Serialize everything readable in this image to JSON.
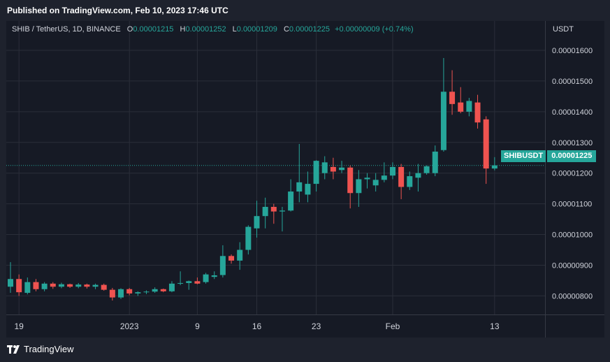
{
  "header": {
    "published": "Published on TradingView.com, Feb 10, 2023 17:46 UTC"
  },
  "legend": {
    "symbol": "SHIB / TetherUS, 1D, BINANCE",
    "o_label": "O",
    "o_value": "0.00001215",
    "h_label": "H",
    "h_value": "0.00001252",
    "l_label": "L",
    "l_value": "0.00001209",
    "c_label": "C",
    "c_value": "0.00001225",
    "change": "+0.00000009 (+0.74%)"
  },
  "axis": {
    "currency": "USDT"
  },
  "price_tag": {
    "symbol": "SHIBUSDT",
    "value": "0.00001225"
  },
  "footer": {
    "brand": "TradingView"
  },
  "colors": {
    "up": "#26a69a",
    "down": "#ef5350",
    "background": "#161a25",
    "grid": "#2a2e39",
    "text": "#d1d4dc"
  },
  "chart_data": {
    "type": "candlestick",
    "title": "SHIB / TetherUS, 1D, BINANCE",
    "xlabel": "",
    "ylabel": "USDT",
    "ylim": [
      7.6e-06,
      1.65e-05
    ],
    "xlim": [
      "2022-12-18",
      "2023-02-14"
    ],
    "y_ticks": [
      "0.00000800",
      "0.00000900",
      "0.00001000",
      "0.00001100",
      "0.00001200",
      "0.00001300",
      "0.00001400",
      "0.00001500",
      "0.00001600"
    ],
    "y_tick_values": [
      8e-06,
      9e-06,
      1e-05,
      1.1e-05,
      1.2e-05,
      1.3e-05,
      1.4e-05,
      1.5e-05,
      1.6e-05
    ],
    "x_ticks": [
      {
        "label": "19",
        "date": "2022-12-19"
      },
      {
        "label": "2023",
        "date": "2023-01-01"
      },
      {
        "label": "9",
        "date": "2023-01-09"
      },
      {
        "label": "16",
        "date": "2023-01-16"
      },
      {
        "label": "23",
        "date": "2023-01-23"
      },
      {
        "label": "Feb",
        "date": "2023-02-01"
      },
      {
        "label": "13",
        "date": "2023-02-13"
      }
    ],
    "last_price": 1.225e-05,
    "grid": true,
    "candles": [
      {
        "date": "2022-12-18",
        "o": 8.3e-06,
        "h": 9.1e-06,
        "l": 8.1e-06,
        "c": 8.55e-06
      },
      {
        "date": "2022-12-19",
        "o": 8.55e-06,
        "h": 8.7e-06,
        "l": 8e-06,
        "c": 8.12e-06
      },
      {
        "date": "2022-12-20",
        "o": 8.1e-06,
        "h": 8.6e-06,
        "l": 8.05e-06,
        "c": 8.45e-06
      },
      {
        "date": "2022-12-21",
        "o": 8.45e-06,
        "h": 8.55e-06,
        "l": 8.15e-06,
        "c": 8.22e-06
      },
      {
        "date": "2022-12-22",
        "o": 8.22e-06,
        "h": 8.45e-06,
        "l": 8.15e-06,
        "c": 8.4e-06
      },
      {
        "date": "2022-12-23",
        "o": 8.4e-06,
        "h": 8.45e-06,
        "l": 8.23e-06,
        "c": 8.3e-06
      },
      {
        "date": "2022-12-24",
        "o": 8.3e-06,
        "h": 8.43e-06,
        "l": 8.25e-06,
        "c": 8.38e-06
      },
      {
        "date": "2022-12-25",
        "o": 8.38e-06,
        "h": 8.4e-06,
        "l": 8.26e-06,
        "c": 8.3e-06
      },
      {
        "date": "2022-12-26",
        "o": 8.3e-06,
        "h": 8.42e-06,
        "l": 8.25e-06,
        "c": 8.37e-06
      },
      {
        "date": "2022-12-27",
        "o": 8.37e-06,
        "h": 8.4e-06,
        "l": 8.24e-06,
        "c": 8.3e-06
      },
      {
        "date": "2022-12-28",
        "o": 8.3e-06,
        "h": 8.4e-06,
        "l": 8.22e-06,
        "c": 8.36e-06
      },
      {
        "date": "2022-12-29",
        "o": 8.36e-06,
        "h": 8.4e-06,
        "l": 8.17e-06,
        "c": 8.2e-06
      },
      {
        "date": "2022-12-30",
        "o": 8.2e-06,
        "h": 8.26e-06,
        "l": 7.85e-06,
        "c": 7.95e-06
      },
      {
        "date": "2022-12-31",
        "o": 7.95e-06,
        "h": 8.25e-06,
        "l": 7.9e-06,
        "c": 8.22e-06
      },
      {
        "date": "2023-01-01",
        "o": 8.22e-06,
        "h": 8.26e-06,
        "l": 8.02e-06,
        "c": 8.08e-06
      },
      {
        "date": "2023-01-02",
        "o": 8.08e-06,
        "h": 8.15e-06,
        "l": 8e-06,
        "c": 8.12e-06
      },
      {
        "date": "2023-01-03",
        "o": 8.12e-06,
        "h": 8.18e-06,
        "l": 8.06e-06,
        "c": 8.14e-06
      },
      {
        "date": "2023-01-04",
        "o": 8.14e-06,
        "h": 8.28e-06,
        "l": 8.1e-06,
        "c": 8.22e-06
      },
      {
        "date": "2023-01-05",
        "o": 8.22e-06,
        "h": 8.24e-06,
        "l": 8.12e-06,
        "c": 8.15e-06
      },
      {
        "date": "2023-01-06",
        "o": 8.15e-06,
        "h": 8.48e-06,
        "l": 8.12e-06,
        "c": 8.4e-06
      },
      {
        "date": "2023-01-07",
        "o": 8.4e-06,
        "h": 8.8e-06,
        "l": 8.35e-06,
        "c": 8.42e-06
      },
      {
        "date": "2023-01-08",
        "o": 8.42e-06,
        "h": 8.5e-06,
        "l": 8.2e-06,
        "c": 8.48e-06
      },
      {
        "date": "2023-01-09",
        "o": 8.48e-06,
        "h": 8.6e-06,
        "l": 8.38e-06,
        "c": 8.4e-06
      },
      {
        "date": "2023-01-10",
        "o": 8.45e-06,
        "h": 8.75e-06,
        "l": 8.4e-06,
        "c": 8.7e-06
      },
      {
        "date": "2023-01-11",
        "o": 8.62e-06,
        "h": 8.8e-06,
        "l": 8.55e-06,
        "c": 8.67e-06
      },
      {
        "date": "2023-01-12",
        "o": 8.68e-06,
        "h": 9.65e-06,
        "l": 8.6e-06,
        "c": 9.3e-06
      },
      {
        "date": "2023-01-13",
        "o": 9.3e-06,
        "h": 9.35e-06,
        "l": 9.05e-06,
        "c": 9.15e-06
      },
      {
        "date": "2023-01-14",
        "o": 9.15e-06,
        "h": 9.75e-06,
        "l": 8.85e-06,
        "c": 9.5e-06
      },
      {
        "date": "2023-01-15",
        "o": 9.5e-06,
        "h": 1.03e-05,
        "l": 9.35e-06,
        "c": 1.025e-05
      },
      {
        "date": "2023-01-16",
        "o": 1.02e-05,
        "h": 1.11e-05,
        "l": 9.9e-06,
        "c": 1.06e-05
      },
      {
        "date": "2023-01-17",
        "o": 1.06e-05,
        "h": 1.12e-05,
        "l": 1.02e-05,
        "c": 1.09e-05
      },
      {
        "date": "2023-01-18",
        "o": 1.09e-05,
        "h": 1.1e-05,
        "l": 1.035e-05,
        "c": 1.075e-05
      },
      {
        "date": "2023-01-19",
        "o": 1.075e-05,
        "h": 1.09e-05,
        "l": 1.01e-05,
        "c": 1.078e-05
      },
      {
        "date": "2023-01-20",
        "o": 1.078e-05,
        "h": 1.18e-05,
        "l": 1.075e-05,
        "c": 1.14e-05
      },
      {
        "date": "2023-01-21",
        "o": 1.14e-05,
        "h": 1.295e-05,
        "l": 1.105e-05,
        "c": 1.17e-05
      },
      {
        "date": "2023-01-22",
        "o": 1.13e-05,
        "h": 1.205e-05,
        "l": 1.105e-05,
        "c": 1.165e-05
      },
      {
        "date": "2023-01-23",
        "o": 1.165e-05,
        "h": 1.242e-05,
        "l": 1.14e-05,
        "c": 1.24e-05
      },
      {
        "date": "2023-01-24",
        "o": 1.2e-05,
        "h": 1.255e-05,
        "l": 1.18e-05,
        "c": 1.235e-05
      },
      {
        "date": "2023-01-25",
        "o": 1.22e-05,
        "h": 1.25e-05,
        "l": 1.18e-05,
        "c": 1.205e-05
      },
      {
        "date": "2023-01-26",
        "o": 1.21e-05,
        "h": 1.24e-05,
        "l": 1.2e-05,
        "c": 1.218e-05
      },
      {
        "date": "2023-01-27",
        "o": 1.218e-05,
        "h": 1.225e-05,
        "l": 1.085e-05,
        "c": 1.135e-05
      },
      {
        "date": "2023-01-28",
        "o": 1.135e-05,
        "h": 1.21e-05,
        "l": 1.09e-05,
        "c": 1.18e-05
      },
      {
        "date": "2023-01-29",
        "o": 1.18e-05,
        "h": 1.2e-05,
        "l": 1.15e-05,
        "c": 1.185e-05
      },
      {
        "date": "2023-01-30",
        "o": 1.16e-05,
        "h": 1.2e-05,
        "l": 1.14e-05,
        "c": 1.178e-05
      },
      {
        "date": "2023-01-31",
        "o": 1.178e-05,
        "h": 1.235e-05,
        "l": 1.17e-05,
        "c": 1.192e-05
      },
      {
        "date": "2023-02-01",
        "o": 1.192e-05,
        "h": 1.235e-05,
        "l": 1.18e-05,
        "c": 1.22e-05
      },
      {
        "date": "2023-02-02",
        "o": 1.22e-05,
        "h": 1.23e-05,
        "l": 1.115e-05,
        "c": 1.155e-05
      },
      {
        "date": "2023-02-03",
        "o": 1.155e-05,
        "h": 1.205e-05,
        "l": 1.145e-05,
        "c": 1.19e-05
      },
      {
        "date": "2023-02-04",
        "o": 1.185e-05,
        "h": 1.23e-05,
        "l": 1.14e-05,
        "c": 1.2e-05
      },
      {
        "date": "2023-02-05",
        "o": 1.2e-05,
        "h": 1.225e-05,
        "l": 1.195e-05,
        "c": 1.222e-05
      },
      {
        "date": "2023-02-06",
        "o": 1.2e-05,
        "h": 1.29e-05,
        "l": 1.19e-05,
        "c": 1.27e-05
      },
      {
        "date": "2023-02-07",
        "o": 1.275e-05,
        "h": 1.575e-05,
        "l": 1.27e-05,
        "c": 1.465e-05
      },
      {
        "date": "2023-02-08",
        "o": 1.465e-05,
        "h": 1.535e-05,
        "l": 1.39e-05,
        "c": 1.425e-05
      },
      {
        "date": "2023-02-09",
        "o": 1.43e-05,
        "h": 1.48e-05,
        "l": 1.395e-05,
        "c": 1.4e-05
      },
      {
        "date": "2023-02-10",
        "o": 1.4e-05,
        "h": 1.445e-05,
        "l": 1.385e-05,
        "c": 1.435e-05
      },
      {
        "date": "2023-02-11",
        "o": 1.43e-05,
        "h": 1.455e-05,
        "l": 1.345e-05,
        "c": 1.365e-05
      },
      {
        "date": "2023-02-12",
        "o": 1.375e-05,
        "h": 1.385e-05,
        "l": 1.165e-05,
        "c": 1.215e-05
      },
      {
        "date": "2023-02-13",
        "o": 1.215e-05,
        "h": 1.252e-05,
        "l": 1.209e-05,
        "c": 1.225e-05
      }
    ]
  }
}
